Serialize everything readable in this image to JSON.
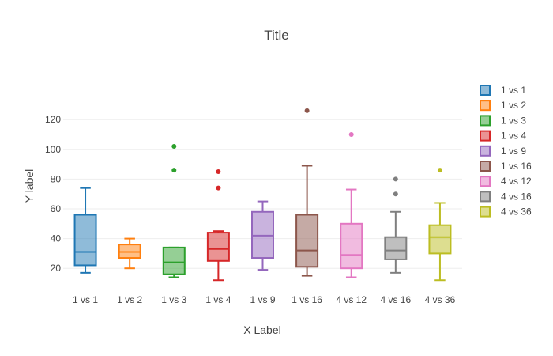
{
  "chart_data": {
    "type": "box",
    "title": "Title",
    "xlabel": "X Label",
    "ylabel": "Y label",
    "ylim": [
      10,
      135
    ],
    "yticks": [
      20,
      40,
      60,
      80,
      100,
      120
    ],
    "grid": "horizontal",
    "legend_position": "right",
    "categories": [
      "1 vs 1",
      "1 vs 2",
      "1 vs 3",
      "1 vs 4",
      "1 vs 9",
      "1 vs 16",
      "4 vs 12",
      "4 vs 16",
      "4 vs 36"
    ],
    "series": [
      {
        "name": "1 vs 1",
        "color": "#1f77b4",
        "q1": 22,
        "median": 31,
        "q3": 56,
        "whisker_low": 17,
        "whisker_high": 74,
        "outliers": []
      },
      {
        "name": "1 vs 2",
        "color": "#ff7f0e",
        "q1": 27,
        "median": 31,
        "q3": 36,
        "whisker_low": 20,
        "whisker_high": 40,
        "outliers": []
      },
      {
        "name": "1 vs 3",
        "color": "#2ca02c",
        "q1": 16,
        "median": 24,
        "q3": 34,
        "whisker_low": 14,
        "whisker_high": 34,
        "outliers": [
          86,
          102
        ]
      },
      {
        "name": "1 vs 4",
        "color": "#d62728",
        "q1": 25,
        "median": 33,
        "q3": 44,
        "whisker_low": 12,
        "whisker_high": 45,
        "outliers": [
          74,
          85
        ]
      },
      {
        "name": "1 vs 9",
        "color": "#9467bd",
        "q1": 27,
        "median": 42,
        "q3": 58,
        "whisker_low": 19,
        "whisker_high": 65,
        "outliers": []
      },
      {
        "name": "1 vs 16",
        "color": "#8c564b",
        "q1": 21,
        "median": 32,
        "q3": 56,
        "whisker_low": 15,
        "whisker_high": 89,
        "outliers": [
          126
        ]
      },
      {
        "name": "4 vs 12",
        "color": "#e377c2",
        "q1": 20,
        "median": 29,
        "q3": 50,
        "whisker_low": 14,
        "whisker_high": 73,
        "outliers": [
          110
        ]
      },
      {
        "name": "4 vs 16",
        "color": "#7f7f7f",
        "q1": 26,
        "median": 32,
        "q3": 41,
        "whisker_low": 17,
        "whisker_high": 58,
        "outliers": [
          70,
          80
        ]
      },
      {
        "name": "4 vs 36",
        "color": "#bcbd22",
        "q1": 30,
        "median": 41,
        "q3": 49,
        "whisker_low": 12,
        "whisker_high": 64,
        "outliers": [
          86
        ]
      }
    ]
  }
}
